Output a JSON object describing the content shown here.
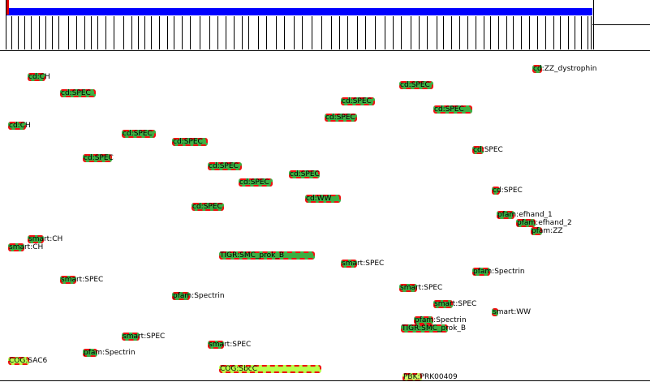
{
  "features": [
    {
      "label": "cd:ZZ_dystrophin",
      "type": "cd"
    },
    {
      "label": "cd:CH",
      "type": "cd"
    },
    {
      "label": "cd:SPEC",
      "type": "cd"
    },
    {
      "label": "cd:SPEC",
      "type": "cd"
    },
    {
      "label": "cd:SPEC",
      "type": "cd"
    },
    {
      "label": "cd:SPEC",
      "type": "cd"
    },
    {
      "label": "cd:SPEC",
      "type": "cd"
    },
    {
      "label": "cd:CH",
      "type": "cd"
    },
    {
      "label": "cd:SPEC",
      "type": "cd"
    },
    {
      "label": "cd:SPEC",
      "type": "cd"
    },
    {
      "label": "cd:SPEC",
      "type": "cd"
    },
    {
      "label": "cd:SPEC",
      "type": "cd"
    },
    {
      "label": "cd:SPEC",
      "type": "cd"
    },
    {
      "label": "cd:SPEC",
      "type": "cd"
    },
    {
      "label": "cd:SPEC",
      "type": "cd"
    },
    {
      "label": "cd:WW",
      "type": "cd"
    },
    {
      "label": "cd:SPEC",
      "type": "cd"
    },
    {
      "label": "cd:SPEC",
      "type": "cd"
    },
    {
      "label": "pfam:efhand_1",
      "type": "pfam"
    },
    {
      "label": "pfam:efhand_2",
      "type": "pfam"
    },
    {
      "label": "pfam:ZZ",
      "type": "pfam"
    },
    {
      "label": "smart:CH",
      "type": "smart"
    },
    {
      "label": "smart:CH",
      "type": "smart"
    },
    {
      "label": "TIGR:SMC_prok_B",
      "type": "tigr"
    },
    {
      "label": "smart:SPEC",
      "type": "smart"
    },
    {
      "label": "pfam:Spectrin",
      "type": "pfam"
    },
    {
      "label": "smart:SPEC",
      "type": "smart"
    },
    {
      "label": "smart:SPEC",
      "type": "smart"
    },
    {
      "label": "pfam:Spectrin",
      "type": "pfam"
    },
    {
      "label": "smart:SPEC",
      "type": "smart"
    },
    {
      "label": "smart:WW",
      "type": "smart"
    },
    {
      "label": "pfam:Spectrin",
      "type": "pfam"
    },
    {
      "label": "TIGR:SMC_prok_B",
      "type": "tigr"
    },
    {
      "label": "smart:SPEC",
      "type": "smart"
    },
    {
      "label": "pfam:Spectrin",
      "type": "pfam"
    },
    {
      "label": "smart:SPEC",
      "type": "smart"
    },
    {
      "label": "COG:SAC6",
      "type": "cog"
    },
    {
      "label": "COG:SbcC",
      "type": "cog"
    },
    {
      "label": "PBK:PRK00409",
      "type": "pbk"
    }
  ],
  "colors": {
    "overview_bar": "#0000ff",
    "position_marker": "#e00000",
    "feature_fill": "#3cb043",
    "feature_border": "#ee1111",
    "cog_fill": "#b8ff4c"
  }
}
